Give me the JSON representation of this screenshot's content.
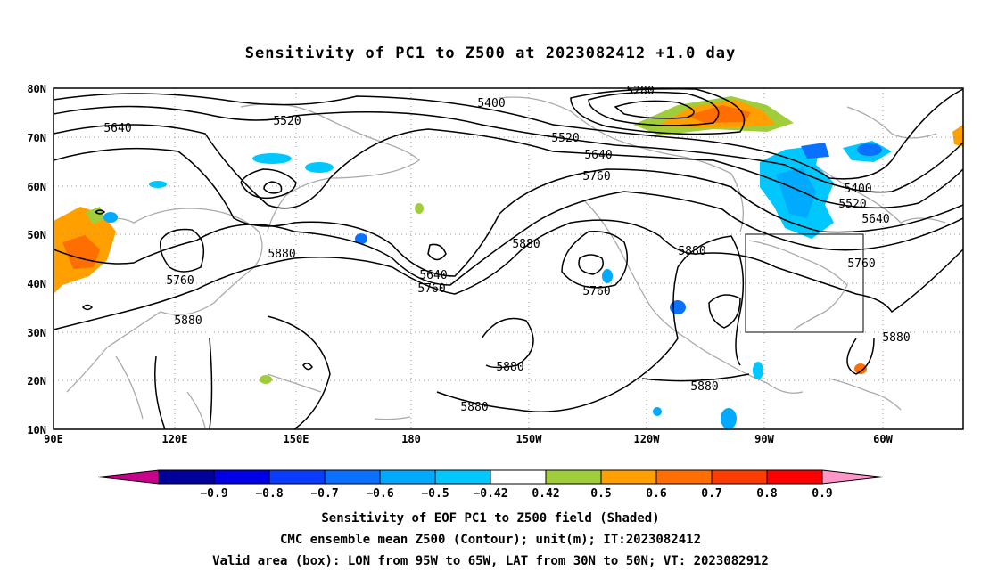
{
  "figure": {
    "title": "Sensitivity of PC1 to Z500 at 2023082412 +1.0 day"
  },
  "axes": {
    "lat_ticks": [
      "80N",
      "70N",
      "60N",
      "50N",
      "40N",
      "30N",
      "20N",
      "10N"
    ],
    "lon_ticks": [
      "90E",
      "120E",
      "150E",
      "180",
      "150W",
      "120W",
      "90W",
      "60W"
    ]
  },
  "contours": {
    "labels": [
      {
        "text": "5280"
      },
      {
        "text": "5400"
      },
      {
        "text": "5520"
      },
      {
        "text": "5640"
      },
      {
        "text": "5520"
      },
      {
        "text": "5640"
      },
      {
        "text": "5760"
      },
      {
        "text": "5400"
      },
      {
        "text": "5520"
      },
      {
        "text": "5640"
      },
      {
        "text": "5760"
      },
      {
        "text": "5880"
      },
      {
        "text": "5880"
      },
      {
        "text": "5760"
      },
      {
        "text": "5640"
      },
      {
        "text": "5760"
      },
      {
        "text": "5880"
      },
      {
        "text": "5760"
      },
      {
        "text": "5880"
      },
      {
        "text": "5880"
      },
      {
        "text": "5880"
      },
      {
        "text": "5880"
      },
      {
        "text": "5880"
      }
    ]
  },
  "colorbar": {
    "colors": [
      "#c8008c",
      "#00009a",
      "#0000e6",
      "#0a3cff",
      "#0a70ff",
      "#00aaff",
      "#00c8ff",
      "#ffffff",
      "#a0cd3a",
      "#ffa000",
      "#ff6e00",
      "#ff3c00",
      "#ff0000",
      "#ff96c8"
    ],
    "labels": [
      "−0.9",
      "−0.8",
      "−0.7",
      "−0.6",
      "−0.5",
      "−0.42",
      "0.42",
      "0.5",
      "0.6",
      "0.7",
      "0.8",
      "0.9"
    ]
  },
  "valid_box": {
    "lon_min": "95W",
    "lon_max": "65W",
    "lat_min": "30N",
    "lat_max": "50N"
  },
  "footer": {
    "line1": "Sensitivity of EOF PC1 to Z500 field (Shaded)",
    "line2": "CMC ensemble mean Z500 (Contour); unit(m); IT:2023082412",
    "line3": "Valid area (box): LON from 95W to 65W, LAT from 30N to 50N; VT: 2023082912"
  }
}
